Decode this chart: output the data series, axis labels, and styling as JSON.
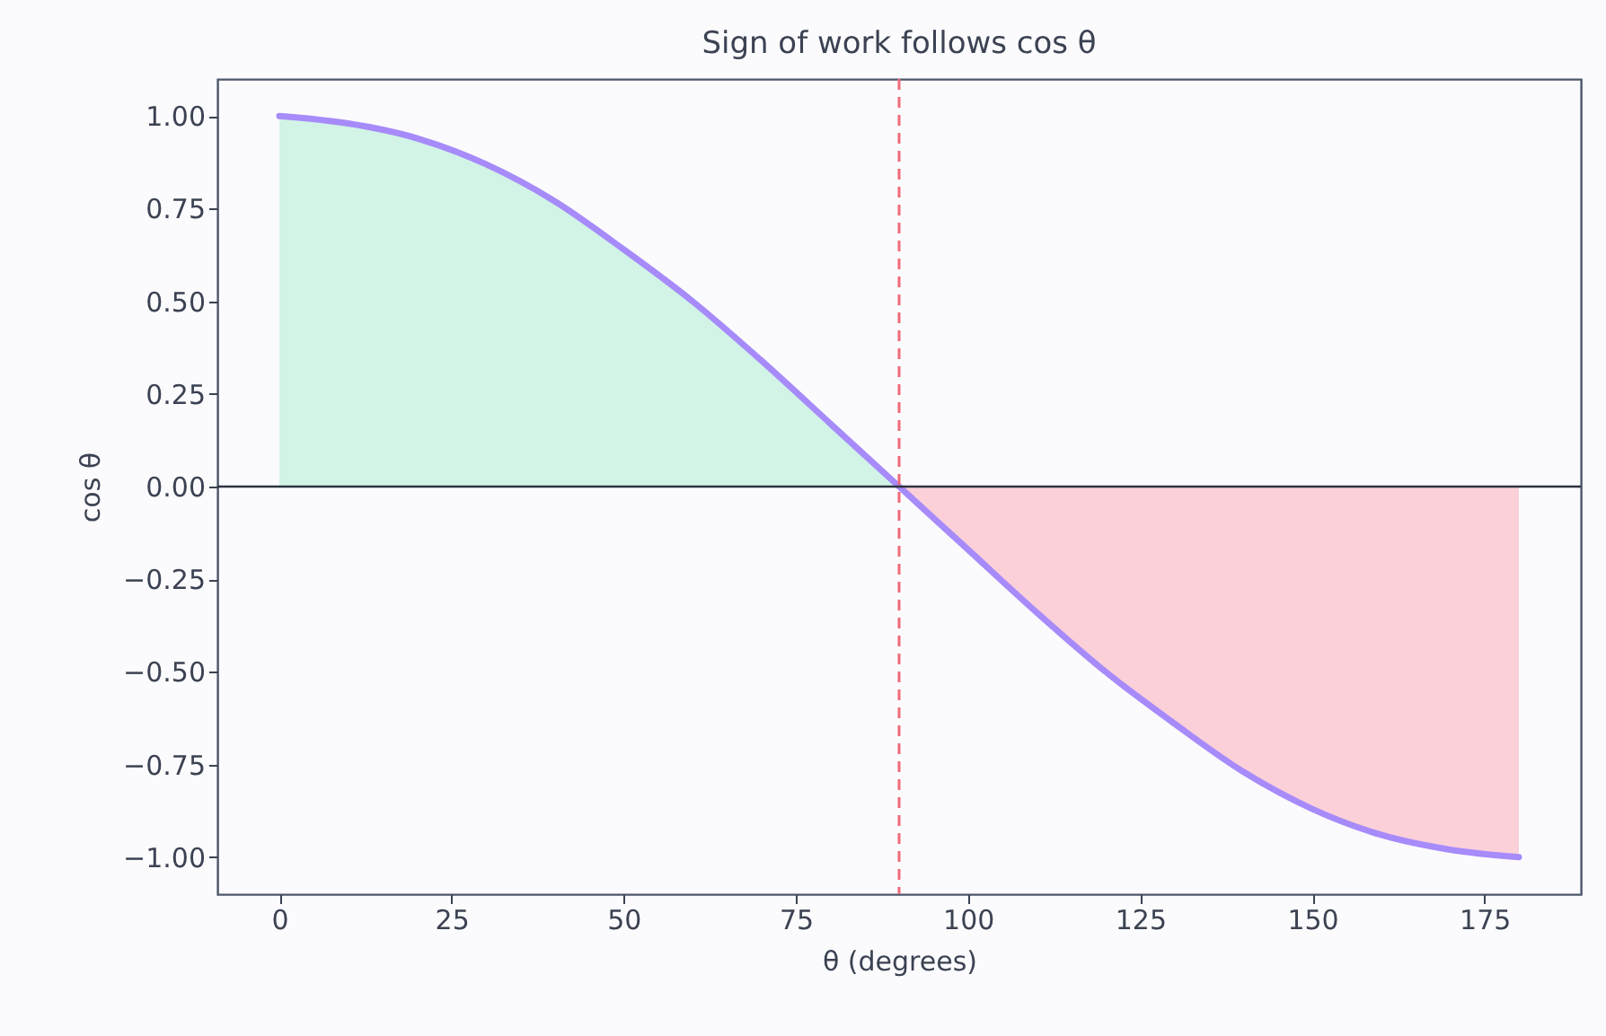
{
  "chart_data": {
    "type": "line",
    "title": "Sign of work follows cos θ",
    "xlabel": "θ (degrees)",
    "ylabel": "cos θ",
    "series": [
      {
        "type": "area",
        "color": "#d1f4e6",
        "x": [
          0,
          10,
          20,
          30,
          40,
          50,
          60,
          70,
          80,
          90
        ],
        "values": [
          1.0,
          0.98,
          0.94,
          0.87,
          0.77,
          0.64,
          0.5,
          0.34,
          0.17,
          0.0
        ]
      },
      {
        "type": "area",
        "color": "#fbd0d9",
        "x": [
          90,
          100,
          110,
          120,
          130,
          140,
          150,
          160,
          170,
          180
        ],
        "values": [
          0.0,
          -0.17,
          -0.34,
          -0.5,
          -0.64,
          -0.77,
          -0.87,
          -0.94,
          -0.98,
          -1.0
        ]
      },
      {
        "color": "#a78bfa",
        "x": [
          0,
          10,
          20,
          30,
          40,
          50,
          60,
          70,
          80,
          90,
          100,
          110,
          120,
          130,
          140,
          150,
          160,
          170,
          180
        ],
        "values": [
          1.0,
          0.98,
          0.94,
          0.87,
          0.77,
          0.64,
          0.5,
          0.34,
          0.17,
          0.0,
          -0.17,
          -0.34,
          -0.5,
          -0.64,
          -0.77,
          -0.87,
          -0.94,
          -0.98,
          -1.0
        ]
      }
    ],
    "ref_lines": [
      {
        "axis": "y",
        "value": 0,
        "color": "#2e3440",
        "line_style": "solid"
      },
      {
        "axis": "x",
        "value": 90,
        "color": "#f06a7a",
        "line_style": "dashed"
      }
    ],
    "xlim": [
      -9,
      189
    ],
    "xticks": [
      0,
      25,
      50,
      75,
      100,
      125,
      150,
      175
    ],
    "ylim": [
      -1.1,
      1.1
    ],
    "yticks": [
      {
        "value": -1,
        "label": "−1.00"
      },
      {
        "value": -0.75,
        "label": "−0.75"
      },
      {
        "value": -0.5,
        "label": "−0.50"
      },
      {
        "value": -0.25,
        "label": "−0.25"
      },
      {
        "value": 0,
        "label": "0.00"
      },
      {
        "value": 0.25,
        "label": "0.25"
      },
      {
        "value": 0.5,
        "label": "0.50"
      },
      {
        "value": 0.75,
        "label": "0.75"
      },
      {
        "value": 1,
        "label": "1.00"
      }
    ],
    "grid": false,
    "marker": "none"
  }
}
